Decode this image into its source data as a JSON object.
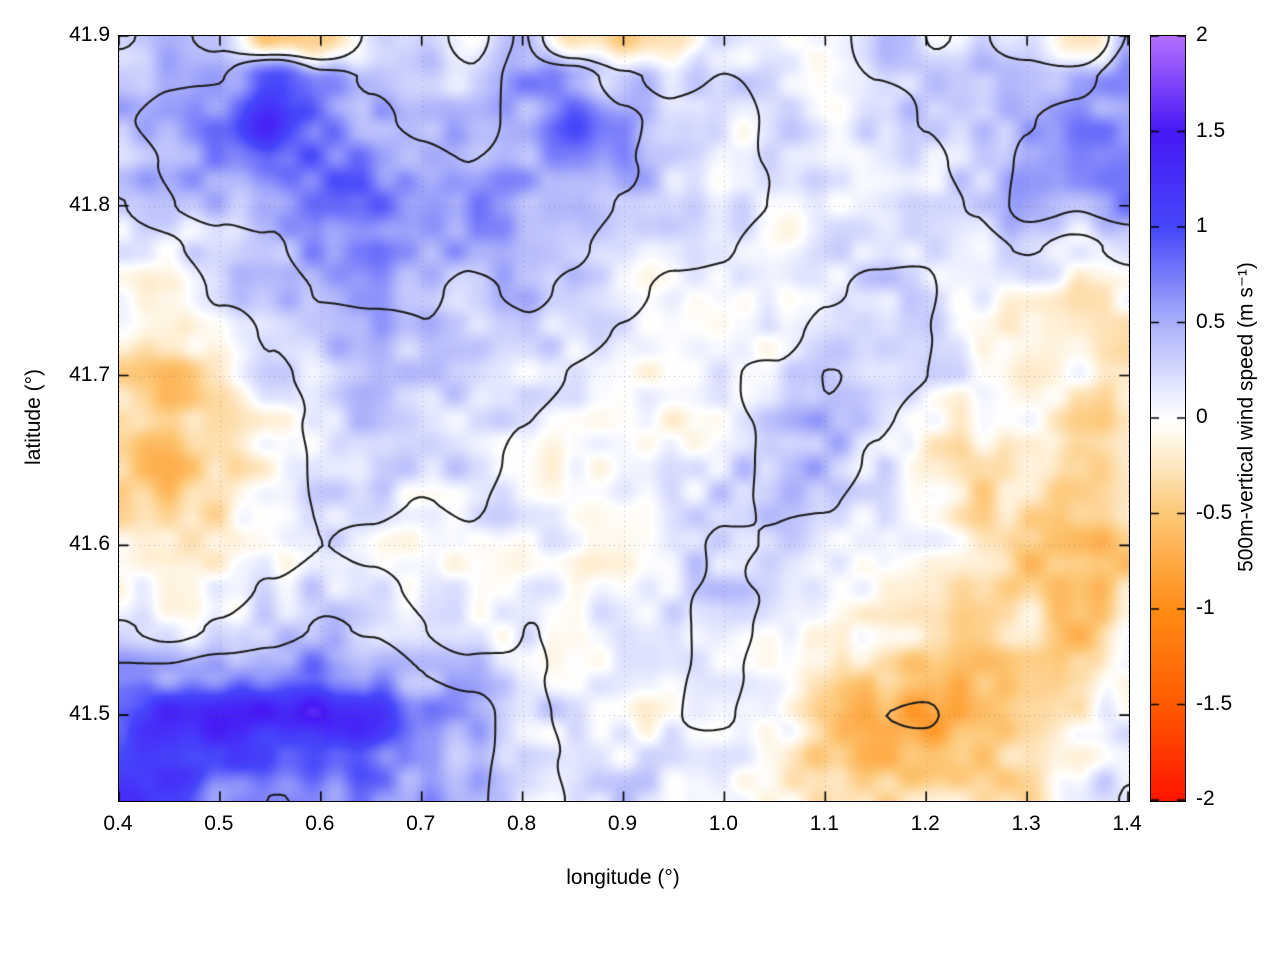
{
  "chart_data": {
    "type": "heatmap",
    "title": "",
    "xlabel": "longitude (°)",
    "ylabel": "latitude (°)",
    "x_range": [
      0.4,
      1.4
    ],
    "y_range": [
      41.45,
      41.9
    ],
    "x_ticks": [
      "0.4",
      "0.5",
      "0.6",
      "0.7",
      "0.8",
      "0.9",
      "1.0",
      "1.1",
      "1.2",
      "1.3",
      "1.4"
    ],
    "y_ticks": [
      "41.9",
      "41.8",
      "41.7",
      "41.6",
      "41.5"
    ],
    "grid_on": true,
    "colorbar": {
      "label": "500m-vertical wind speed (m s⁻¹)",
      "range": [
        -2,
        2
      ],
      "ticks": [
        "2",
        "1.5",
        "1",
        "0.5",
        "0",
        "-0.5",
        "-1",
        "-1.5",
        "-2"
      ]
    },
    "colormap_stops": [
      {
        "v": -2.0,
        "c": "#ff1400"
      },
      {
        "v": -1.5,
        "c": "#ff5a00"
      },
      {
        "v": -1.0,
        "c": "#ff8c14"
      },
      {
        "v": -0.5,
        "c": "#fdc878"
      },
      {
        "v": -0.15,
        "c": "#fff2dc"
      },
      {
        "v": 0.0,
        "c": "#ffffff"
      },
      {
        "v": 0.15,
        "c": "#e6eaff"
      },
      {
        "v": 0.5,
        "c": "#aab0fa"
      },
      {
        "v": 1.0,
        "c": "#4646fa"
      },
      {
        "v": 1.5,
        "c": "#4618f5"
      },
      {
        "v": 2.0,
        "c": "#b46eff"
      }
    ],
    "contour_levels": [
      0.2,
      0.45,
      -0.75
    ],
    "contour_color": "#1a1a1a",
    "noise_texture": {
      "octaves": [
        {
          "scale": 24,
          "amp": 0.18
        },
        {
          "scale": 48,
          "amp": 0.13
        }
      ],
      "contour_octave": {
        "scale": 85,
        "amp": 0.13
      },
      "seed": 11
    },
    "grid": {
      "lon_start": 0.4,
      "lon_step": 0.05,
      "nx": 21,
      "lat_start": 41.9,
      "lat_step": -0.025,
      "ny": 19,
      "values": [
        [
          0.3,
          0.4,
          0.2,
          -0.5,
          -0.4,
          0.2,
          0.3,
          0.1,
          0.5,
          -0.3,
          -0.5,
          -0.4,
          0.2,
          0.1,
          0.0,
          0.3,
          0.2,
          0.3,
          0.1,
          -0.3,
          0.4
        ],
        [
          0.4,
          0.5,
          0.5,
          1.0,
          0.5,
          0.4,
          0.35,
          0.25,
          0.55,
          0.65,
          0.3,
          0.1,
          0.2,
          0.17,
          0.07,
          0.22,
          0.27,
          0.37,
          0.4,
          0.4,
          0.6
        ],
        [
          0.5,
          0.6,
          0.7,
          1.4,
          0.8,
          0.5,
          0.4,
          0.3,
          0.5,
          0.9,
          0.6,
          0.3,
          0.2,
          0.2,
          0.1,
          0.2,
          0.3,
          0.4,
          0.5,
          0.6,
          0.7
        ],
        [
          0.4,
          0.5,
          0.55,
          0.9,
          0.8,
          0.7,
          0.55,
          0.45,
          0.5,
          0.7,
          0.5,
          0.3,
          0.2,
          0.15,
          0.1,
          0.15,
          0.25,
          0.35,
          0.55,
          0.55,
          0.65
        ],
        [
          0.3,
          0.4,
          0.4,
          0.5,
          0.8,
          0.9,
          0.7,
          0.6,
          0.5,
          0.5,
          0.4,
          0.3,
          0.2,
          0.1,
          0.1,
          0.1,
          0.2,
          0.3,
          0.6,
          0.5,
          0.6
        ],
        [
          0.2,
          0.1,
          0.3,
          0.4,
          0.65,
          0.7,
          0.6,
          0.5,
          0.45,
          0.4,
          0.3,
          0.2,
          0.15,
          0.0,
          0.15,
          0.2,
          0.25,
          0.2,
          0.3,
          0.15,
          0.25
        ],
        [
          0.1,
          -0.2,
          0.2,
          0.3,
          0.5,
          0.5,
          0.5,
          0.4,
          0.4,
          0.3,
          0.2,
          0.1,
          0.1,
          -0.1,
          0.2,
          0.3,
          0.3,
          0.1,
          0.0,
          -0.2,
          -0.1
        ],
        [
          -0.15,
          -0.35,
          0.0,
          0.25,
          0.4,
          0.45,
          0.45,
          0.35,
          0.3,
          0.2,
          0.15,
          0.05,
          0.1,
          0.05,
          0.3,
          0.3,
          0.25,
          0.05,
          -0.1,
          -0.15,
          -0.2
        ],
        [
          -0.4,
          -0.5,
          -0.2,
          0.2,
          0.3,
          0.4,
          0.4,
          0.3,
          0.2,
          0.1,
          0.1,
          0.0,
          0.1,
          0.2,
          0.4,
          0.3,
          0.2,
          0.0,
          -0.2,
          -0.1,
          -0.3
        ],
        [
          -0.35,
          -0.55,
          -0.3,
          0.1,
          0.25,
          0.35,
          0.3,
          0.25,
          0.15,
          0.05,
          0.05,
          0.05,
          0.15,
          0.25,
          0.4,
          0.25,
          0.0,
          -0.15,
          -0.15,
          -0.25,
          -0.25
        ],
        [
          -0.3,
          -0.6,
          -0.4,
          0.0,
          0.2,
          0.3,
          0.2,
          0.2,
          0.1,
          0.0,
          0.0,
          0.1,
          0.2,
          0.3,
          0.4,
          0.2,
          -0.2,
          -0.3,
          -0.1,
          -0.4,
          -0.2
        ],
        [
          -0.25,
          -0.45,
          -0.25,
          0.05,
          0.2,
          0.2,
          0.1,
          0.15,
          0.05,
          0.0,
          0.05,
          0.15,
          0.25,
          0.3,
          0.3,
          0.15,
          -0.15,
          -0.25,
          -0.3,
          -0.5,
          -0.3
        ],
        [
          -0.2,
          -0.3,
          -0.1,
          0.1,
          0.2,
          0.1,
          0.0,
          0.1,
          0.0,
          0.0,
          0.1,
          0.2,
          0.3,
          0.3,
          0.2,
          0.1,
          -0.1,
          -0.2,
          -0.5,
          -0.6,
          -0.4
        ],
        [
          0.0,
          -0.1,
          0.05,
          0.2,
          0.3,
          0.2,
          0.1,
          0.1,
          0.05,
          0.0,
          0.1,
          0.15,
          0.25,
          0.2,
          0.1,
          -0.05,
          -0.2,
          -0.3,
          -0.4,
          -0.6,
          -0.3
        ],
        [
          0.2,
          0.1,
          0.2,
          0.3,
          0.4,
          0.3,
          0.2,
          0.1,
          0.1,
          0.0,
          0.1,
          0.1,
          0.2,
          0.1,
          0.0,
          -0.2,
          -0.3,
          -0.4,
          -0.3,
          -0.6,
          -0.2
        ],
        [
          0.5,
          0.5,
          0.6,
          0.6,
          0.8,
          0.6,
          0.4,
          0.3,
          0.15,
          0.05,
          0.05,
          0.1,
          0.15,
          0.05,
          -0.2,
          -0.5,
          -0.6,
          -0.5,
          -0.3,
          -0.4,
          0.0
        ],
        [
          1.0,
          1.3,
          1.4,
          1.3,
          1.5,
          1.2,
          0.6,
          0.5,
          0.2,
          0.1,
          0.0,
          0.1,
          0.1,
          0.0,
          -0.4,
          -0.8,
          -0.9,
          -0.6,
          -0.3,
          -0.2,
          0.2
        ],
        [
          1.2,
          1.2,
          1.0,
          0.8,
          1.0,
          0.9,
          0.6,
          0.5,
          0.25,
          0.15,
          0.1,
          0.1,
          0.05,
          -0.05,
          -0.35,
          -0.6,
          -0.6,
          -0.4,
          -0.35,
          0.0,
          0.25
        ],
        [
          1.3,
          1.0,
          0.6,
          0.5,
          0.6,
          0.7,
          0.6,
          0.5,
          0.3,
          0.2,
          0.2,
          0.1,
          0.0,
          -0.1,
          -0.3,
          -0.4,
          -0.3,
          -0.2,
          -0.4,
          0.2,
          0.3
        ]
      ]
    }
  }
}
